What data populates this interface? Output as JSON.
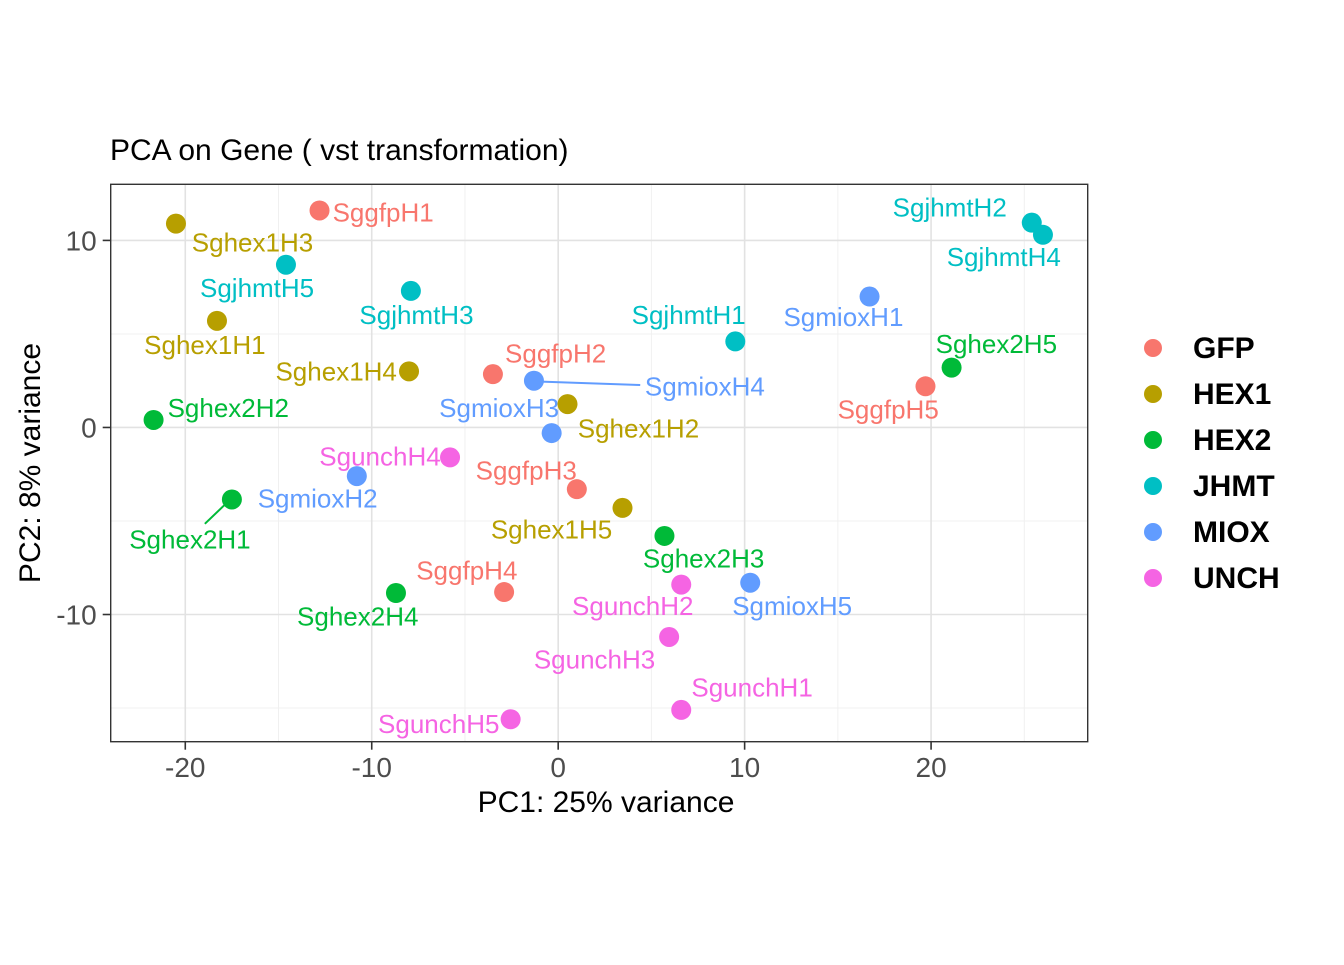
{
  "chart_data": {
    "type": "scatter",
    "title": "PCA on Gene ( vst transformation)",
    "xlabel": "PC1: 25% variance",
    "ylabel": "PC2: 8% variance",
    "xlim": [
      -24.0,
      28.4
    ],
    "ylim": [
      -16.8,
      13.0
    ],
    "x_major_ticks": [
      -20,
      -10,
      0,
      10,
      20
    ],
    "x_minor_ticks": [
      -15,
      -5,
      5,
      15,
      25
    ],
    "y_major_ticks": [
      10,
      0,
      -10
    ],
    "y_minor_ticks": [
      5,
      -5,
      -15
    ],
    "grid": true,
    "legend_position": "right",
    "series": [
      {
        "name": "GFP",
        "color": "#F8766D",
        "points": [
          {
            "label": "SggfpH1",
            "x": -12.8,
            "y": 11.6,
            "lx": -12.1,
            "ly": 11.5,
            "anchor": "start",
            "leader": null
          },
          {
            "label": "SggfpH2",
            "x": -3.5,
            "y": 2.85,
            "lx": -2.85,
            "ly": 3.95,
            "anchor": "start",
            "leader": null
          },
          {
            "label": "SggfpH3",
            "x": 1.0,
            "y": -3.3,
            "lx": 1.0,
            "ly": -2.3,
            "anchor": "end",
            "leader": null
          },
          {
            "label": "SggfpH4",
            "x": -2.9,
            "y": -8.8,
            "lx": -4.9,
            "ly": -7.65,
            "anchor": "middle",
            "leader": null
          },
          {
            "label": "SggfpH5",
            "x": 19.7,
            "y": 2.2,
            "lx": 17.7,
            "ly": 0.95,
            "anchor": "middle",
            "leader": null
          }
        ]
      },
      {
        "name": "HEX1",
        "color": "#B79F00",
        "points": [
          {
            "label": "Sghex1H1",
            "x": -18.3,
            "y": 5.7,
            "lx": -18.95,
            "ly": 4.4,
            "anchor": "middle",
            "leader": null
          },
          {
            "label": "Sghex1H2",
            "x": 0.5,
            "y": 1.25,
            "lx": 1.05,
            "ly": -0.05,
            "anchor": "start",
            "leader": null
          },
          {
            "label": "Sghex1H3",
            "x": -20.5,
            "y": 10.9,
            "lx": -19.65,
            "ly": 9.9,
            "anchor": "start",
            "leader": null
          },
          {
            "label": "Sghex1H4",
            "x": -8.0,
            "y": 3.0,
            "lx": -8.65,
            "ly": 3.0,
            "anchor": "end",
            "leader": null
          },
          {
            "label": "Sghex1H5",
            "x": 3.45,
            "y": -4.3,
            "lx": 2.9,
            "ly": -5.45,
            "anchor": "end",
            "leader": null
          }
        ]
      },
      {
        "name": "HEX2",
        "color": "#00BA38",
        "points": [
          {
            "label": "Sghex2H1",
            "x": -17.5,
            "y": -3.85,
            "lx": -19.75,
            "ly": -6.0,
            "anchor": "middle",
            "leader": [
              -17.9,
              -4.15,
              -18.95,
              -5.15
            ]
          },
          {
            "label": "Sghex2H2",
            "x": -21.7,
            "y": 0.4,
            "lx": -20.95,
            "ly": 1.05,
            "anchor": "start",
            "leader": null
          },
          {
            "label": "Sghex2H3",
            "x": 5.7,
            "y": -5.8,
            "lx": 7.8,
            "ly": -7.0,
            "anchor": "middle",
            "leader": null
          },
          {
            "label": "Sghex2H4",
            "x": -8.7,
            "y": -8.85,
            "lx": -10.75,
            "ly": -10.1,
            "anchor": "middle",
            "leader": null
          },
          {
            "label": "Sghex2H5",
            "x": 21.1,
            "y": 3.2,
            "lx": 23.5,
            "ly": 4.45,
            "anchor": "middle",
            "leader": null
          }
        ]
      },
      {
        "name": "JHMT",
        "color": "#00BFC4",
        "points": [
          {
            "label": "SgjhmtH1",
            "x": 9.5,
            "y": 4.6,
            "lx": 7.0,
            "ly": 6.0,
            "anchor": "middle",
            "leader": null
          },
          {
            "label": "SgjhmtH2",
            "x": 25.4,
            "y": 10.95,
            "lx": 21.0,
            "ly": 11.75,
            "anchor": "middle",
            "leader": null
          },
          {
            "label": "SgjhmtH3",
            "x": -7.9,
            "y": 7.3,
            "lx": -7.6,
            "ly": 6.0,
            "anchor": "middle",
            "leader": null
          },
          {
            "label": "SgjhmtH4",
            "x": 26.0,
            "y": 10.3,
            "lx": 23.9,
            "ly": 9.1,
            "anchor": "middle",
            "leader": null
          },
          {
            "label": "SgjhmtH5",
            "x": -14.6,
            "y": 8.7,
            "lx": -16.15,
            "ly": 7.45,
            "anchor": "middle",
            "leader": null
          }
        ]
      },
      {
        "name": "MIOX",
        "color": "#619CFF",
        "points": [
          {
            "label": "SgmioxH1",
            "x": 16.7,
            "y": 7.0,
            "lx": 15.3,
            "ly": 5.9,
            "anchor": "middle",
            "leader": null
          },
          {
            "label": "SgmioxH2",
            "x": -10.8,
            "y": -2.6,
            "lx": -12.9,
            "ly": -3.8,
            "anchor": "middle",
            "leader": null
          },
          {
            "label": "SgmioxH3",
            "x": -0.35,
            "y": -0.3,
            "lx": 0.05,
            "ly": 1.05,
            "anchor": "end",
            "leader": null
          },
          {
            "label": "SgmioxH4",
            "x": -1.3,
            "y": 2.5,
            "lx": 4.65,
            "ly": 2.2,
            "anchor": "start",
            "leader": [
              -0.9,
              2.45,
              4.4,
              2.27
            ]
          },
          {
            "label": "SgmioxH5",
            "x": 10.3,
            "y": -8.3,
            "lx": 12.55,
            "ly": -9.55,
            "anchor": "middle",
            "leader": null
          }
        ]
      },
      {
        "name": "UNCH",
        "color": "#F564E3",
        "points": [
          {
            "label": "SgunchH1",
            "x": 6.6,
            "y": -15.1,
            "lx": 10.4,
            "ly": -13.9,
            "anchor": "middle",
            "leader": null
          },
          {
            "label": "SgunchH2",
            "x": 6.6,
            "y": -8.4,
            "lx": 4.0,
            "ly": -9.55,
            "anchor": "middle",
            "leader": null
          },
          {
            "label": "SgunchH3",
            "x": 5.95,
            "y": -11.2,
            "lx": 1.95,
            "ly": -12.4,
            "anchor": "middle",
            "leader": null
          },
          {
            "label": "SgunchH4",
            "x": -5.8,
            "y": -1.6,
            "lx": -6.3,
            "ly": -1.55,
            "anchor": "end",
            "leader": null
          },
          {
            "label": "SgunchH5",
            "x": -2.55,
            "y": -15.6,
            "lx": -3.15,
            "ly": -15.85,
            "anchor": "end",
            "leader": null
          }
        ]
      }
    ],
    "legend_entries": [
      {
        "label": "GFP",
        "color": "#F8766D"
      },
      {
        "label": "HEX1",
        "color": "#B79F00"
      },
      {
        "label": "HEX2",
        "color": "#00BA38"
      },
      {
        "label": "JHMT",
        "color": "#00BFC4"
      },
      {
        "label": "MIOX",
        "color": "#619CFF"
      },
      {
        "label": "UNCH",
        "color": "#F564E3"
      }
    ],
    "style_colors": {
      "grid_major": "#E2E2E2",
      "grid_minor": "#F0F0F0",
      "panel_border": "#333333",
      "tick": "#333333",
      "tick_label": "#4D4D4D",
      "text": "#000000",
      "background": "#FFFFFF"
    }
  }
}
